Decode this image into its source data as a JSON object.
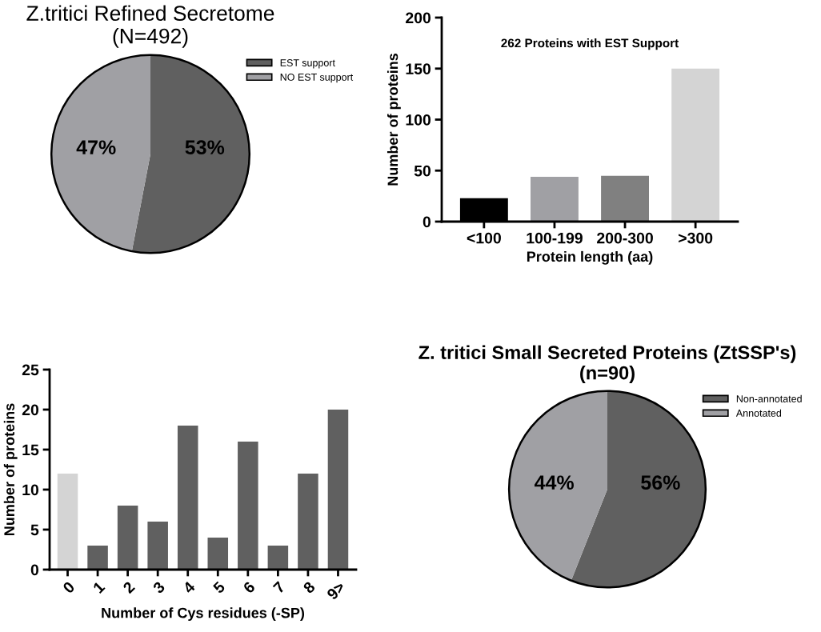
{
  "chart_data": [
    {
      "type": "pie",
      "title": "Z.tritici Refined Secretome\n(N=492)",
      "categories": [
        "EST support",
        "NO EST support"
      ],
      "values": [
        53,
        47
      ],
      "colors": [
        "#606060",
        "#a0a0a4"
      ],
      "value_labels": [
        "53%",
        "47%"
      ],
      "legend": "top right"
    },
    {
      "type": "bar",
      "title": "262 Proteins with EST Support",
      "xlabel": "Protein length (aa)",
      "ylabel": "Number of proteins",
      "categories": [
        "<100",
        "100-199",
        "200-300",
        ">300"
      ],
      "values": [
        23,
        44,
        45,
        150
      ],
      "colors": [
        "#000000",
        "#a0a0a4",
        "#808080",
        "#d4d4d4"
      ],
      "ylim": [
        0,
        200
      ],
      "yticks": [
        0,
        50,
        100,
        150,
        200
      ],
      "grid": false
    },
    {
      "type": "bar",
      "xlabel": "Number of Cys residues (-SP)",
      "ylabel": "Number of proteins",
      "categories": [
        "0",
        "1",
        "2",
        "3",
        "4",
        "5",
        "6",
        "7",
        "8",
        "9>"
      ],
      "values": [
        12,
        3,
        8,
        6,
        18,
        4,
        16,
        3,
        12,
        20
      ],
      "colors": [
        "#d4d4d4",
        "#606060",
        "#606060",
        "#606060",
        "#606060",
        "#606060",
        "#606060",
        "#606060",
        "#606060",
        "#606060"
      ],
      "ylim": [
        0,
        25
      ],
      "yticks": [
        0,
        5,
        10,
        15,
        20,
        25
      ],
      "grid": false
    },
    {
      "type": "pie",
      "title": "Z. tritici Small Secreted Proteins (ZtSSP's)\n(n=90)",
      "categories": [
        "Non-annotated",
        "Annotated"
      ],
      "values": [
        56,
        44
      ],
      "colors": [
        "#606060",
        "#a0a0a4"
      ],
      "value_labels": [
        "56%",
        "44%"
      ],
      "legend": "top right"
    }
  ]
}
